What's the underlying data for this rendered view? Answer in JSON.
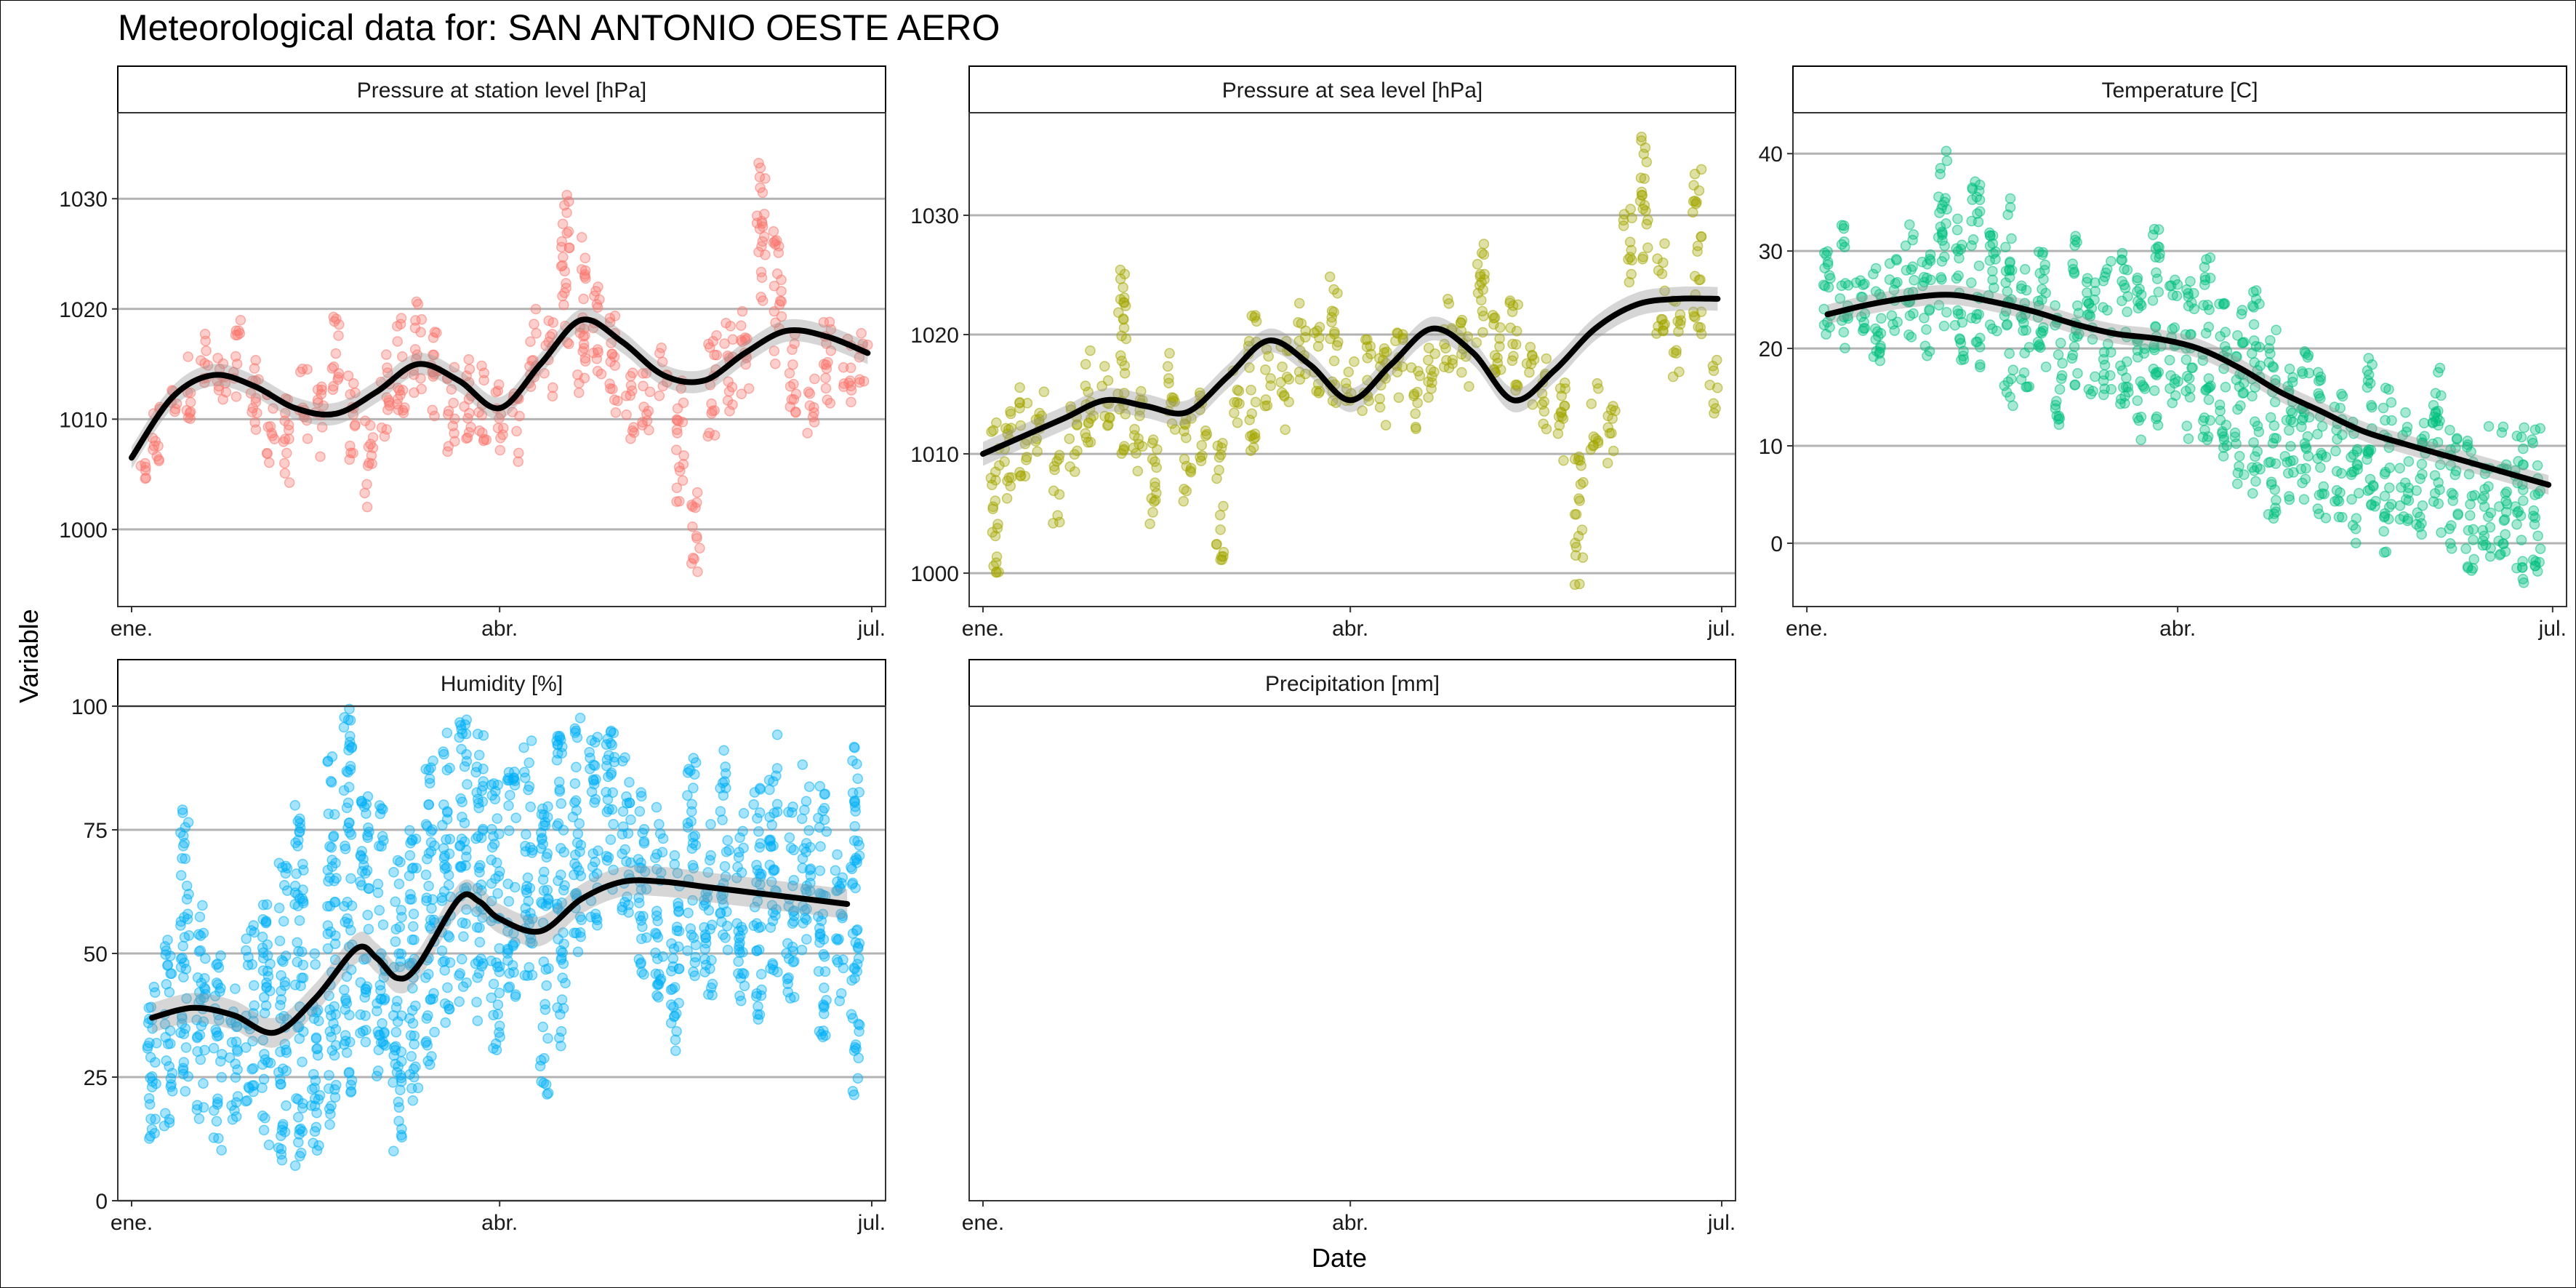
{
  "title": "Meteorological data for: SAN ANTONIO OESTE AERO",
  "xlabel": "Date",
  "ylabel": "Variable",
  "chart_data": [
    {
      "type": "scatter",
      "panel": "Pressure at station level [hPa]",
      "color": "#F8766D",
      "x_ticks": [
        "ene.",
        "abr.",
        "jul."
      ],
      "y_ticks": [
        1000,
        1010,
        1020,
        1030
      ],
      "ylim": [
        993.0,
        1037.8
      ],
      "smooth": {
        "x_day": [
          0,
          10,
          20,
          30,
          40,
          50,
          60,
          70,
          80,
          90,
          100,
          110,
          120,
          130,
          140,
          150,
          160,
          170,
          180
        ],
        "y": [
          1006.5,
          1012.0,
          1014.0,
          1013.0,
          1011.0,
          1010.5,
          1012.5,
          1015.0,
          1013.5,
          1011.0,
          1015.0,
          1019.0,
          1017.0,
          1014.0,
          1013.5,
          1016.0,
          1018.0,
          1017.5,
          1016.0
        ],
        "band": 1.0
      },
      "clusters": [
        [
          3,
          1004,
          1006
        ],
        [
          6,
          1005,
          1012
        ],
        [
          10,
          1010,
          1013
        ],
        [
          14,
          1010,
          1016
        ],
        [
          18,
          1012,
          1018
        ],
        [
          22,
          1009,
          1016
        ],
        [
          26,
          1012,
          1019
        ],
        [
          30,
          1008,
          1016
        ],
        [
          34,
          1006,
          1013
        ],
        [
          38,
          1004,
          1012
        ],
        [
          42,
          1008,
          1015
        ],
        [
          46,
          1006,
          1013
        ],
        [
          50,
          1012,
          1020
        ],
        [
          54,
          1006,
          1014
        ],
        [
          58,
          1002,
          1010
        ],
        [
          62,
          1008,
          1016
        ],
        [
          66,
          1010,
          1020
        ],
        [
          70,
          1012,
          1021
        ],
        [
          74,
          1010,
          1019
        ],
        [
          78,
          1007,
          1015
        ],
        [
          82,
          1008,
          1016
        ],
        [
          86,
          1008,
          1015
        ],
        [
          90,
          1007,
          1014
        ],
        [
          94,
          1006,
          1013
        ],
        [
          98,
          1012,
          1020
        ],
        [
          102,
          1012,
          1019
        ],
        [
          106,
          1016,
          1031
        ],
        [
          110,
          1012,
          1027
        ],
        [
          114,
          1014,
          1023
        ],
        [
          118,
          1010,
          1020
        ],
        [
          122,
          1008,
          1015
        ],
        [
          126,
          1009,
          1016
        ],
        [
          130,
          1012,
          1017
        ],
        [
          134,
          1002,
          1014
        ],
        [
          138,
          996,
          1004
        ],
        [
          142,
          1008,
          1018
        ],
        [
          146,
          1010,
          1019
        ],
        [
          150,
          1012,
          1020
        ],
        [
          154,
          1020,
          1034
        ],
        [
          158,
          1015,
          1028
        ],
        [
          162,
          1010,
          1018
        ],
        [
          166,
          1008,
          1014
        ],
        [
          170,
          1011,
          1020
        ],
        [
          175,
          1011,
          1018
        ],
        [
          179,
          1013,
          1018
        ]
      ]
    },
    {
      "type": "scatter",
      "panel": "Pressure at sea level [hPa]",
      "color": "#A3A500",
      "x_ticks": [
        "ene.",
        "abr.",
        "jul."
      ],
      "y_ticks": [
        1000,
        1010,
        1020,
        1030
      ],
      "ylim": [
        997.2,
        1038.6
      ],
      "smooth": {
        "x_day": [
          0,
          10,
          20,
          30,
          40,
          50,
          60,
          70,
          80,
          90,
          100,
          110,
          120,
          130,
          140,
          150,
          160,
          170,
          180
        ],
        "y": [
          1010.0,
          1011.5,
          1013.0,
          1014.5,
          1014.0,
          1013.5,
          1016.5,
          1019.5,
          1017.5,
          1014.5,
          1017.5,
          1020.5,
          1018.5,
          1014.5,
          1017.0,
          1020.5,
          1022.5,
          1023.0,
          1023.0
        ],
        "band": 1.0
      },
      "clusters": [
        [
          3,
          1000,
          1013
        ],
        [
          6,
          1006,
          1014
        ],
        [
          10,
          1008,
          1016
        ],
        [
          14,
          1010,
          1016
        ],
        [
          18,
          1004,
          1010
        ],
        [
          22,
          1008,
          1014
        ],
        [
          26,
          1010,
          1019
        ],
        [
          30,
          1012,
          1018
        ],
        [
          34,
          1010,
          1027
        ],
        [
          38,
          1008,
          1016
        ],
        [
          42,
          1004,
          1012
        ],
        [
          46,
          1012,
          1019
        ],
        [
          50,
          1006,
          1014
        ],
        [
          54,
          1009,
          1016
        ],
        [
          58,
          1001,
          1011
        ],
        [
          62,
          1012,
          1017
        ],
        [
          66,
          1010,
          1022
        ],
        [
          70,
          1014,
          1019
        ],
        [
          74,
          1012,
          1020
        ],
        [
          78,
          1016,
          1023
        ],
        [
          82,
          1015,
          1021
        ],
        [
          86,
          1014,
          1025
        ],
        [
          90,
          1013,
          1018
        ],
        [
          94,
          1013,
          1020
        ],
        [
          98,
          1012,
          1020
        ],
        [
          102,
          1014,
          1021
        ],
        [
          106,
          1012,
          1018
        ],
        [
          110,
          1014,
          1020
        ],
        [
          114,
          1016,
          1023
        ],
        [
          118,
          1015,
          1022
        ],
        [
          122,
          1018,
          1028
        ],
        [
          126,
          1016,
          1025
        ],
        [
          130,
          1015,
          1024
        ],
        [
          134,
          1014,
          1019
        ],
        [
          138,
          1012,
          1018
        ],
        [
          142,
          1008,
          1016
        ],
        [
          146,
          999,
          1010
        ],
        [
          150,
          1010,
          1016
        ],
        [
          154,
          1008,
          1014
        ],
        [
          158,
          1024,
          1031
        ],
        [
          162,
          1026,
          1037
        ],
        [
          166,
          1020,
          1028
        ],
        [
          170,
          1016,
          1023
        ],
        [
          175,
          1020,
          1034
        ],
        [
          179,
          1013,
          1018
        ]
      ]
    },
    {
      "type": "scatter",
      "panel": "Temperature [C]",
      "color": "#00BF7D",
      "x_ticks": [
        "ene.",
        "abr.",
        "jul."
      ],
      "y_ticks": [
        0,
        10,
        20,
        30,
        40
      ],
      "ylim": [
        -6.5,
        44.2
      ],
      "smooth": {
        "x_day": [
          5,
          15,
          25,
          35,
          45,
          55,
          65,
          75,
          85,
          95,
          105,
          115,
          125,
          135,
          145,
          155,
          165,
          175,
          180
        ],
        "y": [
          23.5,
          24.5,
          25.2,
          25.5,
          24.8,
          23.8,
          22.5,
          21.5,
          21.0,
          20.0,
          18.0,
          15.5,
          13.5,
          11.5,
          10.2,
          9.0,
          7.8,
          6.6,
          6.0
        ],
        "band": 1.0
      },
      "clusters": [
        [
          5,
          18,
          30
        ],
        [
          9,
          20,
          33
        ],
        [
          13,
          19,
          28
        ],
        [
          17,
          18,
          31
        ],
        [
          21,
          21,
          30
        ],
        [
          25,
          20,
          33
        ],
        [
          29,
          18,
          30
        ],
        [
          33,
          22,
          41
        ],
        [
          37,
          18,
          34
        ],
        [
          41,
          18,
          38
        ],
        [
          45,
          20,
          32
        ],
        [
          49,
          14,
          36
        ],
        [
          53,
          16,
          30
        ],
        [
          57,
          14,
          30
        ],
        [
          61,
          12,
          26
        ],
        [
          65,
          16,
          32
        ],
        [
          69,
          14,
          28
        ],
        [
          73,
          15,
          29
        ],
        [
          77,
          12,
          30
        ],
        [
          81,
          10,
          28
        ],
        [
          85,
          12,
          33
        ],
        [
          89,
          14,
          28
        ],
        [
          93,
          10,
          27
        ],
        [
          97,
          10,
          30
        ],
        [
          101,
          8,
          25
        ],
        [
          105,
          6,
          24
        ],
        [
          109,
          4,
          26
        ],
        [
          113,
          2,
          22
        ],
        [
          117,
          4,
          20
        ],
        [
          121,
          2,
          20
        ],
        [
          125,
          2,
          18
        ],
        [
          129,
          2,
          16
        ],
        [
          133,
          0,
          14
        ],
        [
          137,
          2,
          20
        ],
        [
          141,
          -1,
          16
        ],
        [
          145,
          2,
          14
        ],
        [
          149,
          0,
          13
        ],
        [
          153,
          0,
          19
        ],
        [
          157,
          -1,
          12
        ],
        [
          161,
          -3,
          11
        ],
        [
          165,
          -2,
          12
        ],
        [
          169,
          -3,
          12
        ],
        [
          173,
          -5,
          13
        ],
        [
          177,
          -3,
          12
        ]
      ]
    },
    {
      "type": "scatter",
      "panel": "Humidity [%]",
      "color": "#00B0F6",
      "x_ticks": [
        "ene.",
        "abr.",
        "jul."
      ],
      "y_ticks": [
        0,
        25,
        50,
        75,
        100
      ],
      "ylim": [
        0,
        100
      ],
      "smooth": {
        "x_day": [
          5,
          15,
          25,
          35,
          45,
          55,
          60,
          65,
          70,
          80,
          85,
          90,
          100,
          110,
          120,
          130,
          140,
          150,
          160,
          175
        ],
        "y": [
          37.0,
          39.0,
          37.5,
          34.0,
          41.0,
          51.0,
          49.0,
          45.0,
          47.5,
          61.0,
          60.5,
          57.0,
          54.5,
          61.0,
          64.5,
          64.5,
          63.5,
          62.5,
          61.5,
          60.0
        ],
        "band": 3.0
      },
      "clusters": [
        [
          5,
          12,
          50
        ],
        [
          9,
          15,
          55
        ],
        [
          13,
          20,
          80
        ],
        [
          17,
          15,
          62
        ],
        [
          21,
          10,
          50
        ],
        [
          25,
          15,
          45
        ],
        [
          29,
          20,
          58
        ],
        [
          33,
          10,
          60
        ],
        [
          37,
          8,
          70
        ],
        [
          41,
          5,
          80
        ],
        [
          45,
          10,
          50
        ],
        [
          49,
          15,
          90
        ],
        [
          53,
          20,
          100
        ],
        [
          57,
          30,
          85
        ],
        [
          61,
          25,
          80
        ],
        [
          65,
          10,
          70
        ],
        [
          69,
          20,
          75
        ],
        [
          73,
          25,
          90
        ],
        [
          77,
          35,
          95
        ],
        [
          81,
          40,
          98
        ],
        [
          85,
          35,
          95
        ],
        [
          89,
          30,
          90
        ],
        [
          93,
          40,
          88
        ],
        [
          97,
          45,
          95
        ],
        [
          101,
          20,
          80
        ],
        [
          105,
          30,
          95
        ],
        [
          109,
          50,
          98
        ],
        [
          113,
          55,
          95
        ],
        [
          117,
          60,
          100
        ],
        [
          121,
          55,
          90
        ],
        [
          125,
          45,
          85
        ],
        [
          129,
          40,
          80
        ],
        [
          133,
          30,
          75
        ],
        [
          137,
          45,
          90
        ],
        [
          141,
          40,
          80
        ],
        [
          145,
          50,
          92
        ],
        [
          149,
          40,
          80
        ],
        [
          153,
          35,
          85
        ],
        [
          157,
          45,
          95
        ],
        [
          161,
          40,
          80
        ],
        [
          165,
          50,
          90
        ],
        [
          169,
          30,
          85
        ],
        [
          173,
          40,
          70
        ],
        [
          177,
          20,
          96
        ]
      ]
    },
    {
      "type": "scatter",
      "panel": "Precipitation [mm]",
      "color": "#E76BF3",
      "x_ticks": [
        "ene.",
        "abr.",
        "jul."
      ],
      "y_ticks": [],
      "clusters": []
    }
  ]
}
